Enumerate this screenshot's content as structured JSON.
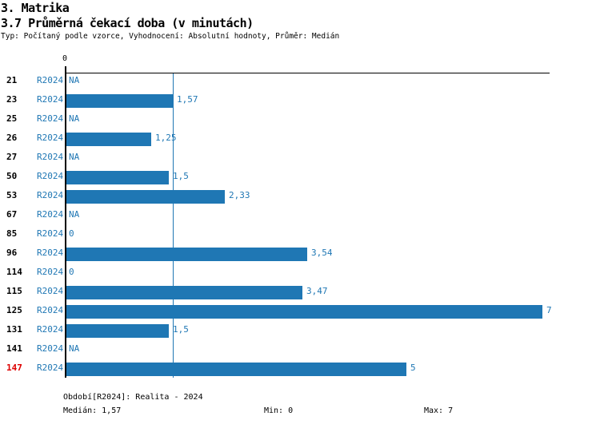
{
  "header": {
    "title": "3. Matrika",
    "subtitle": "3.7 Průměrná čekací doba (v minutách)",
    "meta": "Typ: Počítaný podle vzorce, Vyhodnocení: Absolutní hodnoty, Průměr: Medián"
  },
  "chart_data": {
    "type": "bar",
    "orientation": "horizontal",
    "series_label": "R2024",
    "x_axis": {
      "tick_labels": [
        "0"
      ],
      "xlim": [
        0,
        7
      ],
      "grid": false
    },
    "median_reference": 1.57,
    "rows": [
      {
        "category": "21",
        "period": "R2024",
        "value": null,
        "label": "NA",
        "highlighted": false
      },
      {
        "category": "23",
        "period": "R2024",
        "value": 1.57,
        "label": "1,57",
        "highlighted": false
      },
      {
        "category": "25",
        "period": "R2024",
        "value": null,
        "label": "NA",
        "highlighted": false
      },
      {
        "category": "26",
        "period": "R2024",
        "value": 1.25,
        "label": "1,25",
        "highlighted": false
      },
      {
        "category": "27",
        "period": "R2024",
        "value": null,
        "label": "NA",
        "highlighted": false
      },
      {
        "category": "50",
        "period": "R2024",
        "value": 1.5,
        "label": "1,5",
        "highlighted": false
      },
      {
        "category": "53",
        "period": "R2024",
        "value": 2.33,
        "label": "2,33",
        "highlighted": false
      },
      {
        "category": "67",
        "period": "R2024",
        "value": null,
        "label": "NA",
        "highlighted": false
      },
      {
        "category": "85",
        "period": "R2024",
        "value": 0,
        "label": "0",
        "highlighted": false
      },
      {
        "category": "96",
        "period": "R2024",
        "value": 3.54,
        "label": "3,54",
        "highlighted": false
      },
      {
        "category": "114",
        "period": "R2024",
        "value": 0,
        "label": "0",
        "highlighted": false
      },
      {
        "category": "115",
        "period": "R2024",
        "value": 3.47,
        "label": "3,47",
        "highlighted": false
      },
      {
        "category": "125",
        "period": "R2024",
        "value": 7,
        "label": "7",
        "highlighted": false
      },
      {
        "category": "131",
        "period": "R2024",
        "value": 1.5,
        "label": "1,5",
        "highlighted": false
      },
      {
        "category": "141",
        "period": "R2024",
        "value": null,
        "label": "NA",
        "highlighted": false
      },
      {
        "category": "147",
        "period": "R2024",
        "value": 5,
        "label": "5",
        "highlighted": true
      }
    ],
    "colors": {
      "bar": "#1f77b4",
      "text_blue": "#1f77b4",
      "highlight": "#dd0000",
      "axis": "#000000"
    }
  },
  "footer": {
    "period": "Období[R2024]: Realita - 2024",
    "median": "Medián: 1,57",
    "min": "Min: 0",
    "max": "Max: 7"
  }
}
